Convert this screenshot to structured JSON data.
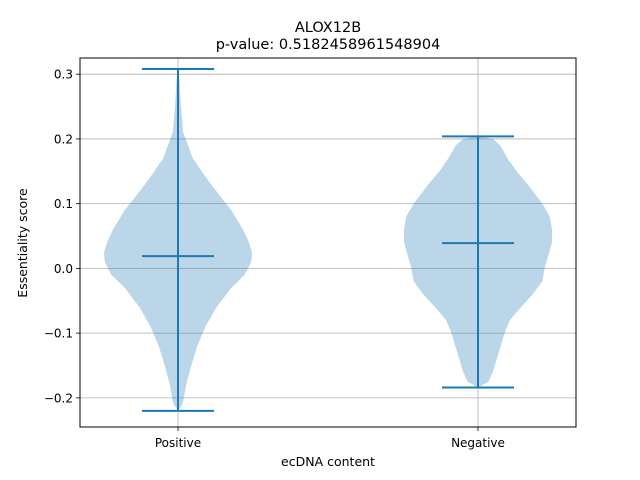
{
  "chart_data": {
    "type": "violin",
    "title": "ALOX12B",
    "subtitle": "p-value: 0.5182458961548904",
    "xlabel": "ecDNA content",
    "ylabel": "Essentiality score",
    "categories": [
      "Positive",
      "Negative"
    ],
    "ylim": [
      -0.245,
      0.325
    ],
    "yticks": [
      -0.2,
      -0.1,
      0.0,
      0.1,
      0.2,
      0.3
    ],
    "ytick_labels": [
      "−0.2",
      "−0.1",
      "0.0",
      "0.1",
      "0.2",
      "0.3"
    ],
    "grid": true,
    "color": "#1f77b4",
    "fill_color": "#1f77b4",
    "fill_opacity": 0.3,
    "violins": [
      {
        "category": "Positive",
        "min": -0.22,
        "max": 0.308,
        "median": 0.019,
        "density": [
          [
            0.308,
            0.0
          ],
          [
            0.29,
            0.02
          ],
          [
            0.25,
            0.04
          ],
          [
            0.21,
            0.07
          ],
          [
            0.17,
            0.2
          ],
          [
            0.14,
            0.38
          ],
          [
            0.11,
            0.58
          ],
          [
            0.09,
            0.72
          ],
          [
            0.06,
            0.88
          ],
          [
            0.04,
            0.96
          ],
          [
            0.025,
            1.0
          ],
          [
            0.01,
            0.99
          ],
          [
            -0.01,
            0.9
          ],
          [
            -0.03,
            0.72
          ],
          [
            -0.06,
            0.52
          ],
          [
            -0.09,
            0.37
          ],
          [
            -0.12,
            0.26
          ],
          [
            -0.15,
            0.18
          ],
          [
            -0.18,
            0.11
          ],
          [
            -0.2,
            0.08
          ],
          [
            -0.21,
            0.06
          ],
          [
            -0.22,
            0.0
          ]
        ]
      },
      {
        "category": "Negative",
        "min": -0.184,
        "max": 0.204,
        "median": 0.039,
        "density": [
          [
            0.204,
            0.0
          ],
          [
            0.2,
            0.2
          ],
          [
            0.19,
            0.3
          ],
          [
            0.17,
            0.4
          ],
          [
            0.15,
            0.52
          ],
          [
            0.13,
            0.67
          ],
          [
            0.1,
            0.87
          ],
          [
            0.08,
            0.97
          ],
          [
            0.06,
            1.0
          ],
          [
            0.04,
            1.0
          ],
          [
            0.02,
            0.95
          ],
          [
            0.0,
            0.9
          ],
          [
            -0.02,
            0.87
          ],
          [
            -0.04,
            0.74
          ],
          [
            -0.06,
            0.58
          ],
          [
            -0.08,
            0.43
          ],
          [
            -0.1,
            0.36
          ],
          [
            -0.13,
            0.28
          ],
          [
            -0.16,
            0.2
          ],
          [
            -0.175,
            0.14
          ],
          [
            -0.184,
            0.0
          ]
        ]
      }
    ]
  }
}
